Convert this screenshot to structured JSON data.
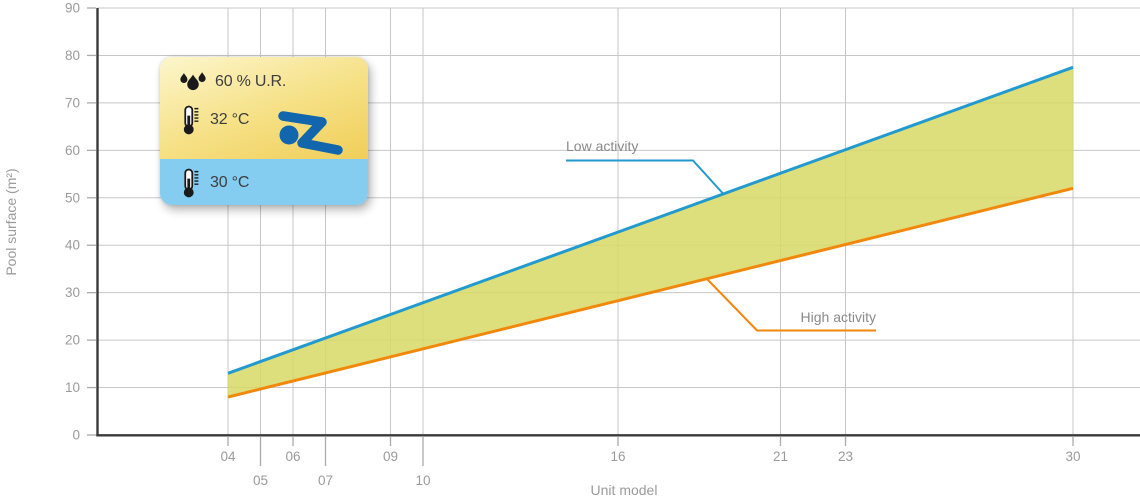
{
  "chart_data": {
    "type": "area",
    "title": "",
    "xlabel": "Unit model",
    "ylabel": "Pool surface (m²)",
    "xlim": [
      0,
      32
    ],
    "ylim": [
      0,
      90
    ],
    "grid": true,
    "y_ticks": [
      0,
      10,
      20,
      30,
      40,
      50,
      60,
      70,
      80,
      90
    ],
    "x_ticks": [
      {
        "label": "04",
        "value": 4,
        "row": 1
      },
      {
        "label": "05",
        "value": 5,
        "row": 2
      },
      {
        "label": "06",
        "value": 6,
        "row": 1
      },
      {
        "label": "07",
        "value": 7,
        "row": 2
      },
      {
        "label": "09",
        "value": 9,
        "row": 1
      },
      {
        "label": "10",
        "value": 10,
        "row": 2
      },
      {
        "label": "16",
        "value": 16,
        "row": 1
      },
      {
        "label": "21",
        "value": 21,
        "row": 1
      },
      {
        "label": "23",
        "value": 23,
        "row": 1
      },
      {
        "label": "30",
        "value": 30,
        "row": 1
      }
    ],
    "series": [
      {
        "name": "Low activity",
        "color": "#2299CF",
        "x": [
          4,
          30
        ],
        "y": [
          13,
          77.5
        ]
      },
      {
        "name": "High activity",
        "color": "#F2870A",
        "x": [
          4,
          30
        ],
        "y": [
          8,
          52
        ]
      }
    ],
    "band": {
      "fill": "#D6D964",
      "opacity": 0.85,
      "between": [
        "Low activity",
        "High activity"
      ]
    },
    "legend_position": "inline-callouts",
    "colors": {
      "grid": "#C7C7C7",
      "axis": "#3A3A3A",
      "tick_labels": "#9B9B9B",
      "callout_labels": "#8A8A8A"
    }
  },
  "info_box": {
    "humidity": "60 % U.R.",
    "air_temperature": "32 °C",
    "water_temperature": "30 °C",
    "colors": {
      "air_gradient_top": "#FCF6CD",
      "air_gradient_bottom": "#F0CE58",
      "water": "#84CCF0",
      "swimmer": "#1166AE",
      "icons": "#1A1A1A",
      "text": "#3E3E3E",
      "waterline": "#FFFFFF"
    }
  }
}
